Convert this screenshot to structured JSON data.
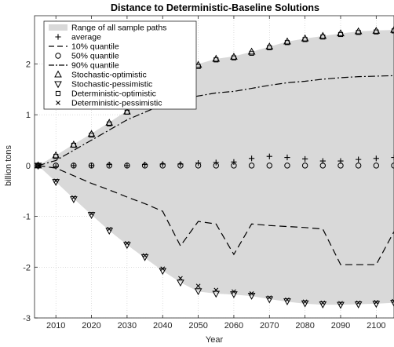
{
  "chart_data": {
    "type": "line",
    "title": "Distance to Deterministic-Baseline Solutions",
    "xlabel": "Year",
    "ylabel": "billion tons",
    "xlim": [
      2004,
      2105
    ],
    "ylim": [
      -3,
      2.95
    ],
    "x_ticks": [
      2010,
      2020,
      2030,
      2040,
      2050,
      2060,
      2070,
      2080,
      2090,
      2100
    ],
    "y_ticks": [
      -3,
      -2,
      -1,
      0,
      1,
      2
    ],
    "y_tick_labels": [
      "-3",
      "-2",
      "-1",
      "0",
      "1",
      "2"
    ],
    "grid": "dotted",
    "legend_position": "top-left",
    "x": [
      2005,
      2010,
      2015,
      2020,
      2025,
      2030,
      2035,
      2040,
      2045,
      2050,
      2055,
      2060,
      2065,
      2070,
      2075,
      2080,
      2085,
      2090,
      2095,
      2100,
      2105
    ],
    "range_band": {
      "name": "Range of all sample paths",
      "color": "#d9d9d9",
      "upper": [
        0,
        0.2,
        0.42,
        0.63,
        0.85,
        1.08,
        1.32,
        1.58,
        1.82,
        2.0,
        2.1,
        2.15,
        2.24,
        2.34,
        2.44,
        2.5,
        2.55,
        2.6,
        2.64,
        2.66,
        2.67
      ],
      "lower": [
        0,
        -0.32,
        -0.65,
        -0.97,
        -1.28,
        -1.56,
        -1.82,
        -2.07,
        -2.3,
        -2.48,
        -2.52,
        -2.54,
        -2.57,
        -2.63,
        -2.68,
        -2.72,
        -2.74,
        -2.74,
        -2.73,
        -2.72,
        -2.7
      ]
    },
    "series": [
      {
        "name": "average",
        "style": "marker-plus",
        "values": [
          0,
          -0.02,
          0,
          0,
          0.02,
          0,
          0.02,
          0.03,
          0.03,
          0.05,
          0.06,
          0.07,
          0.14,
          0.18,
          0.16,
          0.13,
          0.09,
          0.09,
          0.12,
          0.14,
          0.16
        ]
      },
      {
        "name": "10% quantile",
        "style": "dashed",
        "values": [
          0,
          -0.05,
          -0.2,
          -0.35,
          -0.48,
          -0.62,
          -0.75,
          -0.9,
          -1.58,
          -1.1,
          -1.15,
          -1.75,
          -1.15,
          -1.18,
          -1.2,
          -1.22,
          -1.25,
          -1.95,
          -1.95,
          -1.95,
          -1.3
        ]
      },
      {
        "name": "50% quantile",
        "style": "marker-circle",
        "values": [
          0,
          0,
          0,
          0,
          0,
          0,
          0,
          0,
          0,
          0,
          0,
          0,
          0,
          0,
          0,
          0,
          0,
          0,
          0,
          0,
          0
        ]
      },
      {
        "name": "90% quantile",
        "style": "dashdot",
        "values": [
          0,
          0.1,
          0.3,
          0.5,
          0.7,
          0.9,
          1.05,
          1.2,
          1.3,
          1.37,
          1.43,
          1.46,
          1.52,
          1.58,
          1.63,
          1.66,
          1.7,
          1.73,
          1.75,
          1.76,
          1.77
        ]
      },
      {
        "name": "Stochastic-optimistic",
        "style": "marker-triangle-up",
        "values": [
          0,
          0.2,
          0.41,
          0.62,
          0.84,
          1.06,
          1.3,
          1.55,
          1.8,
          1.98,
          2.1,
          2.14,
          2.24,
          2.34,
          2.44,
          2.5,
          2.55,
          2.6,
          2.64,
          2.65,
          2.67
        ]
      },
      {
        "name": "Stochastic-pessimistic",
        "style": "marker-triangle-down",
        "values": [
          0,
          -0.32,
          -0.66,
          -0.97,
          -1.28,
          -1.56,
          -1.8,
          -2.07,
          -2.3,
          -2.47,
          -2.52,
          -2.53,
          -2.56,
          -2.63,
          -2.67,
          -2.71,
          -2.73,
          -2.74,
          -2.73,
          -2.72,
          -2.7
        ]
      },
      {
        "name": "Deterministic-optimistic",
        "style": "marker-square",
        "values": [
          0,
          0.18,
          0.4,
          0.6,
          0.82,
          1.05,
          1.28,
          1.52,
          1.75,
          1.95,
          2.08,
          2.12,
          2.21,
          2.32,
          2.42,
          2.48,
          2.53,
          2.58,
          2.62,
          2.63,
          2.65
        ]
      },
      {
        "name": "Deterministic-pessimistic",
        "style": "marker-x",
        "values": [
          0,
          -0.3,
          -0.63,
          -0.95,
          -1.25,
          -1.53,
          -1.77,
          -2.03,
          -2.22,
          -2.37,
          -2.45,
          -2.48,
          -2.52,
          -2.6,
          -2.64,
          -2.68,
          -2.7,
          -2.71,
          -2.7,
          -2.69,
          -2.67
        ]
      }
    ]
  }
}
